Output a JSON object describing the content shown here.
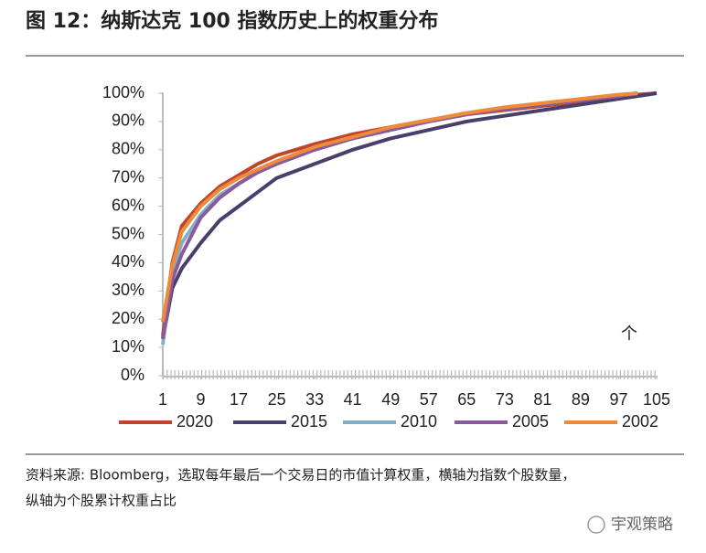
{
  "chart_data": {
    "type": "line",
    "title": "图 12：纳斯达克 100 指数历史上的权重分布",
    "annotation": "个",
    "source": [
      "资料来源: Bloomberg，选取每年最后一个交易日的市值计算权重，横轴为指数个股数量，",
      "纵轴为个股累计权重占比"
    ],
    "watermark": "宇观策略",
    "x": [
      1,
      3,
      5,
      9,
      13,
      17,
      21,
      25,
      33,
      41,
      49,
      57,
      65,
      73,
      81,
      89,
      97,
      101,
      105
    ],
    "xlim": [
      1,
      105
    ],
    "xticks": [
      1,
      9,
      17,
      25,
      33,
      41,
      49,
      57,
      65,
      73,
      81,
      89,
      97,
      105
    ],
    "ylim": [
      0,
      100
    ],
    "yticks": [
      {
        "value": 0,
        "label": "0%"
      },
      {
        "value": 10,
        "label": "10%"
      },
      {
        "value": 20,
        "label": "20%"
      },
      {
        "value": 30,
        "label": "30%"
      },
      {
        "value": 40,
        "label": "40%"
      },
      {
        "value": 50,
        "label": "50%"
      },
      {
        "value": 60,
        "label": "60%"
      },
      {
        "value": 70,
        "label": "70%"
      },
      {
        "value": 80,
        "label": "80%"
      },
      {
        "value": 90,
        "label": "90%"
      },
      {
        "value": 100,
        "label": "100%"
      }
    ],
    "series": [
      {
        "name": "2020",
        "color": "#c0462a",
        "values": [
          14,
          40,
          53,
          61,
          67,
          71,
          75,
          78,
          82,
          85.5,
          88,
          90.5,
          92.5,
          94,
          95.5,
          97,
          98.5,
          99.5,
          100
        ]
      },
      {
        "name": "2015",
        "color": "#4a3f6b",
        "values": [
          13,
          31,
          38,
          47,
          55,
          60,
          65,
          70,
          75,
          80,
          84,
          87,
          90,
          92,
          94,
          96,
          98,
          99,
          100
        ]
      },
      {
        "name": "2010",
        "color": "#7fb0c6",
        "values": [
          11,
          37,
          47,
          57,
          64,
          68,
          72,
          75,
          80,
          84,
          87,
          90,
          92.5,
          94.5,
          96,
          97.5,
          99,
          100,
          null
        ]
      },
      {
        "name": "2005",
        "color": "#8b5a9a",
        "values": [
          13,
          34,
          43,
          56,
          63,
          68,
          72,
          75,
          80,
          84,
          87,
          90,
          92.5,
          94.5,
          96,
          97.5,
          99,
          100,
          null
        ]
      },
      {
        "name": "2002",
        "color": "#ee8a3c",
        "values": [
          19,
          39,
          51,
          60,
          66,
          70,
          73,
          76,
          81,
          84.5,
          88,
          90.5,
          93,
          95,
          96.5,
          98,
          99.5,
          100,
          null
        ]
      }
    ]
  }
}
